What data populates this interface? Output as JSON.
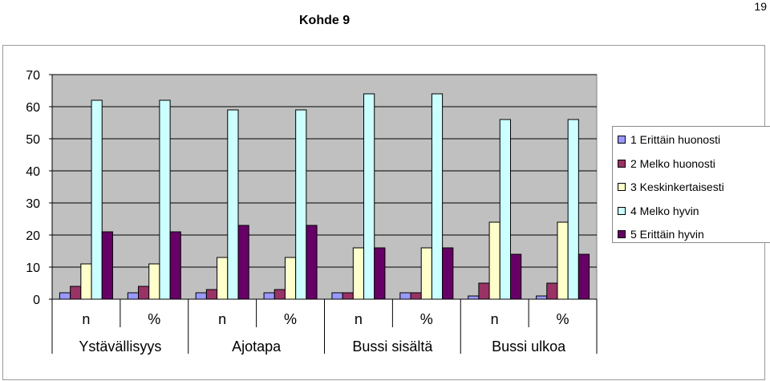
{
  "page": {
    "number": "19",
    "title": "Kohde 9"
  },
  "colors": {
    "plot_bg": "#c0c0c0",
    "series": [
      "#9999ff",
      "#993366",
      "#ffffcc",
      "#ccffff",
      "#660066"
    ]
  },
  "chart_data": {
    "type": "bar",
    "title": "",
    "xlabel": "",
    "ylabel": "",
    "ylim": [
      0,
      70
    ],
    "yticks": [
      0,
      10,
      20,
      30,
      40,
      50,
      60,
      70
    ],
    "grid": true,
    "legend_position": "right",
    "categories": [
      "n",
      "%",
      "n",
      "%",
      "n",
      "%",
      "n",
      "%"
    ],
    "groups": [
      "Ystävällisyys",
      "Ajotapa",
      "Bussi sisältä",
      "Bussi ulkoa"
    ],
    "series": [
      {
        "name": "1 Erittäin huonosti",
        "values": [
          2,
          2,
          2,
          2,
          2,
          2,
          1,
          1
        ]
      },
      {
        "name": "2 Melko huonosti",
        "values": [
          4,
          4,
          3,
          3,
          2,
          2,
          5,
          5
        ]
      },
      {
        "name": "3 Keskinkertaisesti",
        "values": [
          11,
          11,
          13,
          13,
          16,
          16,
          24,
          24
        ]
      },
      {
        "name": "4 Melko hyvin",
        "values": [
          62,
          62,
          59,
          59,
          64,
          64,
          56,
          56
        ]
      },
      {
        "name": "5 Erittäin hyvin",
        "values": [
          21,
          21,
          23,
          23,
          16,
          16,
          14,
          14
        ]
      }
    ]
  }
}
